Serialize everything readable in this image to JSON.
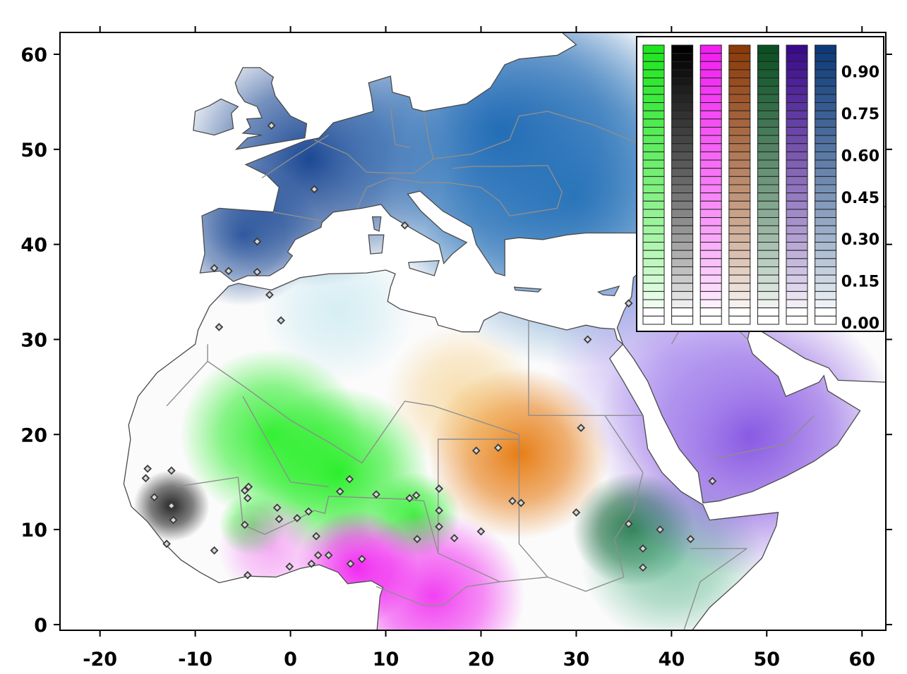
{
  "axes": {
    "x": {
      "min": -24.2,
      "max": 62.5,
      "ticks": [
        -20,
        -10,
        0,
        10,
        20,
        30,
        40,
        50,
        60
      ]
    },
    "y": {
      "min": -0.6,
      "max": 62.3,
      "ticks": [
        0,
        10,
        20,
        30,
        40,
        50,
        60
      ]
    }
  },
  "x_tick_labels": [
    "-20",
    "-10",
    "0",
    "10",
    "20",
    "30",
    "40",
    "50",
    "60"
  ],
  "y_tick_labels": [
    "0",
    "10",
    "20",
    "30",
    "40",
    "50",
    "60"
  ],
  "legend": {
    "labels": [
      "0.90",
      "0.75",
      "0.60",
      "0.45",
      "0.30",
      "0.15",
      "0.00"
    ],
    "label_values": [
      0.9,
      0.75,
      0.6,
      0.45,
      0.3,
      0.15,
      0.0
    ],
    "components": [
      {
        "name": "green-component",
        "color": "#1ee61e"
      },
      {
        "name": "black-component",
        "color": "#000000"
      },
      {
        "name": "magenta-component",
        "color": "#f21ef2"
      },
      {
        "name": "orange-component",
        "color": "#8c3a08"
      },
      {
        "name": "darkgreen-component",
        "color": "#0a4f22"
      },
      {
        "name": "purple-component",
        "color": "#3a0a8c"
      },
      {
        "name": "blue-component",
        "color": "#0d3a7a"
      }
    ]
  },
  "clusters": [
    {
      "color": "#0f3f8f",
      "lon": 2,
      "lat": 49,
      "spread": 9,
      "strength": 0.95
    },
    {
      "color": "#0f3f8f",
      "lon": -5,
      "lat": 41,
      "spread": 5,
      "strength": 0.8
    },
    {
      "color": "#1560b0",
      "lon": 22,
      "lat": 52,
      "spread": 12,
      "strength": 0.9
    },
    {
      "color": "#1a6bb5",
      "lon": 30,
      "lat": 45,
      "spread": 12,
      "strength": 0.85
    },
    {
      "color": "#b6e3ee",
      "lon": 5,
      "lat": 33,
      "spread": 5,
      "strength": 0.55
    },
    {
      "color": "#22ee22",
      "lon": -2,
      "lat": 20,
      "spread": 6,
      "strength": 0.9
    },
    {
      "color": "#22ee22",
      "lon": 5,
      "lat": 16,
      "spread": 6,
      "strength": 0.95
    },
    {
      "color": "#22ee22",
      "lon": 13,
      "lat": 11.5,
      "spread": 3,
      "strength": 0.85
    },
    {
      "color": "#22ee22",
      "lon": -4,
      "lat": 10.5,
      "spread": 2.2,
      "strength": 0.7
    },
    {
      "color": "#111111",
      "lon": -12.5,
      "lat": 12.5,
      "spread": 2.5,
      "strength": 0.9
    },
    {
      "color": "#f020f0",
      "lon": 7,
      "lat": 6,
      "spread": 4,
      "strength": 0.95
    },
    {
      "color": "#f020f0",
      "lon": 15,
      "lat": 3,
      "spread": 6,
      "strength": 0.85
    },
    {
      "color": "#f060f0",
      "lon": -2,
      "lat": 8,
      "spread": 3.5,
      "strength": 0.5
    },
    {
      "color": "#e6770a",
      "lon": 24,
      "lat": 18,
      "spread": 6,
      "strength": 0.95
    },
    {
      "color": "#f4c060",
      "lon": 18,
      "lat": 24,
      "spread": 5,
      "strength": 0.5
    },
    {
      "color": "#0f5a2e",
      "lon": 36,
      "lat": 10,
      "spread": 4,
      "strength": 0.95
    },
    {
      "color": "#56b48c",
      "lon": 40,
      "lat": 7,
      "spread": 6,
      "strength": 0.7
    },
    {
      "color": "#7b45e0",
      "lon": 48,
      "lat": 20,
      "spread": 10,
      "strength": 0.9
    },
    {
      "color": "#a98cf0",
      "lon": 40,
      "lat": 28,
      "spread": 8,
      "strength": 0.6
    }
  ],
  "sample_sites": [
    [
      -2,
      52.5
    ],
    [
      2.5,
      45.8
    ],
    [
      -3.5,
      40.3
    ],
    [
      -8,
      37.5
    ],
    [
      -6.5,
      37.2
    ],
    [
      -3.5,
      37.1
    ],
    [
      12,
      42
    ],
    [
      -2.2,
      34.7
    ],
    [
      -1,
      32
    ],
    [
      -7.5,
      31.3
    ],
    [
      35.5,
      33.8
    ],
    [
      31.2,
      30
    ],
    [
      30.5,
      20.7
    ],
    [
      44.3,
      15.1
    ],
    [
      35.5,
      10.6
    ],
    [
      38.8,
      10
    ],
    [
      42,
      9
    ],
    [
      37,
      8
    ],
    [
      37,
      6
    ],
    [
      30,
      11.8
    ],
    [
      20,
      9.8
    ],
    [
      23.3,
      13
    ],
    [
      24.2,
      12.8
    ],
    [
      19.5,
      18.3
    ],
    [
      21.8,
      18.6
    ],
    [
      -15,
      16.4
    ],
    [
      -15.2,
      15.4
    ],
    [
      -12.5,
      16.2
    ],
    [
      -14.3,
      13.4
    ],
    [
      -12.5,
      12.5
    ],
    [
      -12.3,
      11
    ],
    [
      -13,
      8.5
    ],
    [
      -8,
      7.8
    ],
    [
      -4.5,
      5.2
    ],
    [
      -4.8,
      14.1
    ],
    [
      -4.4,
      14.5
    ],
    [
      -4.5,
      13.3
    ],
    [
      -4.8,
      10.5
    ],
    [
      -1.4,
      12.3
    ],
    [
      -1.2,
      11.1
    ],
    [
      0.7,
      11.2
    ],
    [
      1.9,
      11.9
    ],
    [
      -0.1,
      6.1
    ],
    [
      2.2,
      6.4
    ],
    [
      2.9,
      7.3
    ],
    [
      2.7,
      9.3
    ],
    [
      4,
      7.3
    ],
    [
      6.3,
      6.4
    ],
    [
      7.5,
      6.9
    ],
    [
      5.2,
      14
    ],
    [
      6.2,
      15.3
    ],
    [
      9,
      13.7
    ],
    [
      12.5,
      13.3
    ],
    [
      13.2,
      13.6
    ],
    [
      15.6,
      14.3
    ],
    [
      15.6,
      12
    ],
    [
      15.6,
      10.3
    ],
    [
      13.3,
      9
    ],
    [
      17.2,
      9.1
    ]
  ],
  "place_label": {
    "lon": -16.8,
    "lat": 13.2
  }
}
